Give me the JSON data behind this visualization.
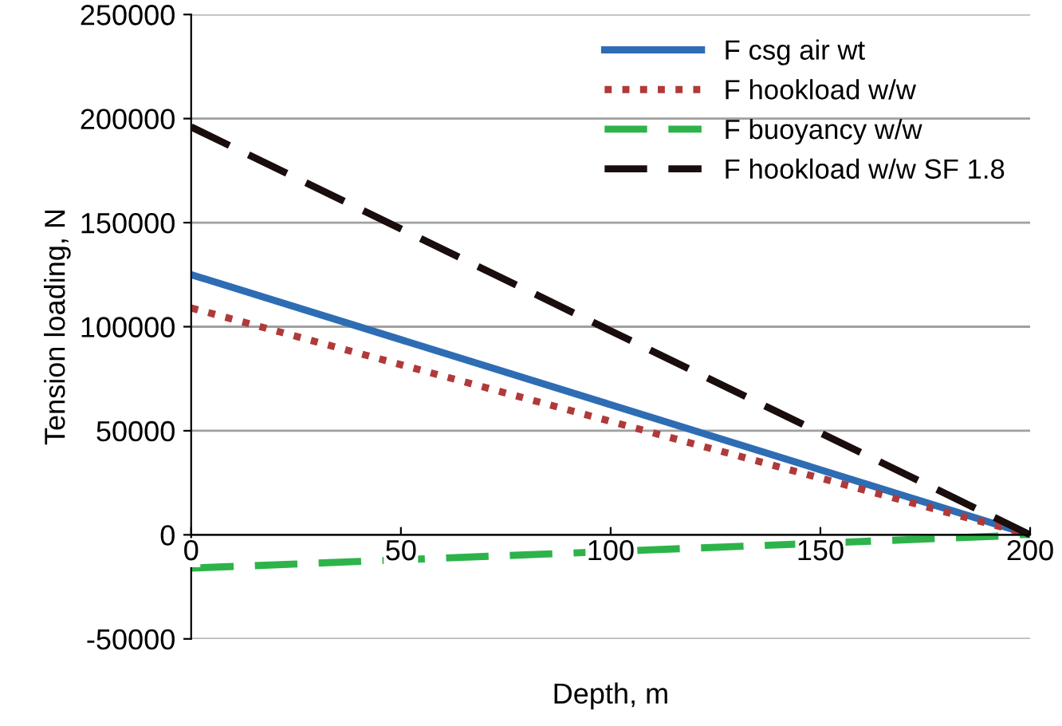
{
  "chart_data": {
    "type": "line",
    "xlabel": "Depth, m",
    "ylabel": "Tension loading, N",
    "x": [
      0,
      200
    ],
    "series": [
      {
        "name": "F csg air wt",
        "color": "#2e6db4",
        "values": [
          125000,
          0
        ],
        "line_style": "solid"
      },
      {
        "name": "F hookload w/w",
        "color": "#b03a3a",
        "values": [
          109000,
          0
        ],
        "line_style": "dotted"
      },
      {
        "name": "F buoyancy w/w",
        "color": "#2db34a",
        "values": [
          -16000,
          0
        ],
        "line_style": "dashed"
      },
      {
        "name": "F hookload w/w SF 1.8",
        "color": "#1a0d0d",
        "values": [
          196000,
          0
        ],
        "line_style": "dashed"
      }
    ],
    "xlim": [
      0,
      200
    ],
    "xticks": [
      0,
      50,
      100,
      150,
      200
    ],
    "ylim": [
      -50000,
      250000
    ],
    "yticks": [
      -50000,
      0,
      50000,
      100000,
      150000,
      200000,
      250000
    ],
    "grid": "y",
    "legend": "top right",
    "marker": "none"
  }
}
